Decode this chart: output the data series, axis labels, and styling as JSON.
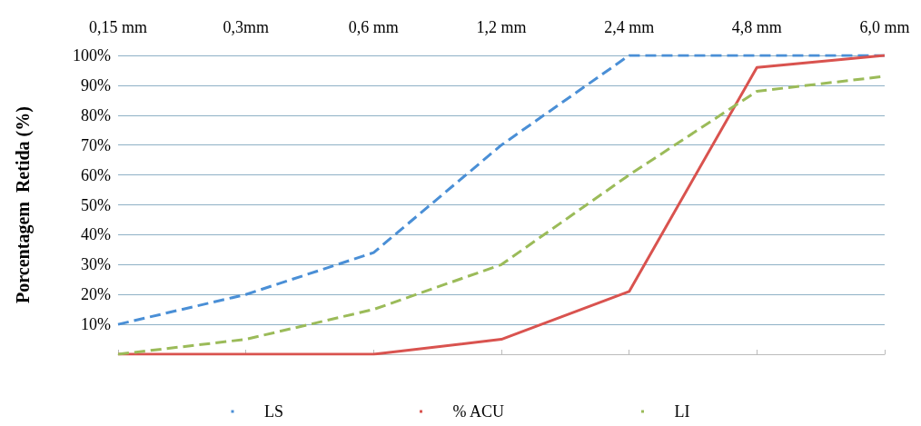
{
  "chart_data": {
    "type": "line",
    "ylabel": "Porcentagem  Retida (%)",
    "categories": [
      "0,15 mm",
      "0,3mm",
      "0,6 mm",
      "1,2 mm",
      "2,4 mm",
      "4,8 mm",
      "6,0 mm"
    ],
    "series": [
      {
        "name": "LS",
        "color": "#4a8fd6",
        "line_style": "dashed",
        "values": [
          10,
          20,
          34,
          70,
          100,
          100,
          100
        ]
      },
      {
        "name": "% ACU",
        "color": "#d9534f",
        "line_style": "solid",
        "values": [
          0,
          0,
          0,
          5,
          21,
          96,
          100
        ]
      },
      {
        "name": "LI",
        "color": "#9bbb59",
        "line_style": "dashed",
        "values": [
          0,
          5,
          15,
          30,
          60,
          88,
          93
        ]
      }
    ],
    "ylim": [
      0,
      100
    ],
    "yticks": [
      {
        "value": 0,
        "label": null
      },
      {
        "value": 10,
        "label": "10%"
      },
      {
        "value": 20,
        "label": "20%"
      },
      {
        "value": 30,
        "label": "30%"
      },
      {
        "value": 40,
        "label": "40%"
      },
      {
        "value": 50,
        "label": "50%"
      },
      {
        "value": 60,
        "label": "60%"
      },
      {
        "value": 70,
        "label": "70%"
      },
      {
        "value": 80,
        "label": "80%"
      },
      {
        "value": 90,
        "label": "90%"
      },
      {
        "value": 100,
        "label": "100%"
      }
    ],
    "grid": "y",
    "legend": "bottom",
    "marker": "none"
  }
}
